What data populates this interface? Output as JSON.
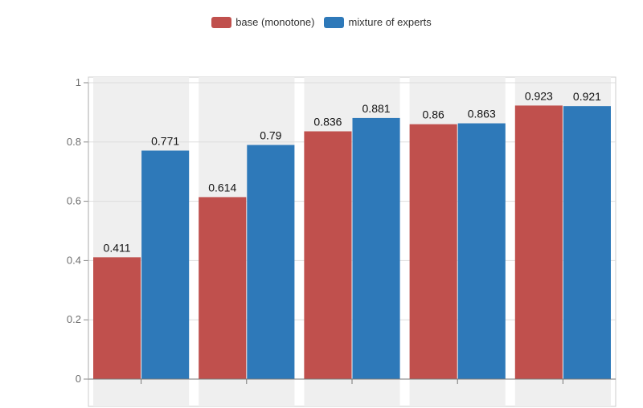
{
  "legend": [
    {
      "name": "base (monotone)",
      "color": "#c0504d"
    },
    {
      "name": "mixture of experts",
      "color": "#2e79b9"
    }
  ],
  "chart_data": {
    "type": "bar",
    "categories": [
      "",
      "",
      "",
      "",
      ""
    ],
    "series": [
      {
        "name": "base (monotone)",
        "color": "#c0504d",
        "values": [
          0.411,
          0.614,
          0.836,
          0.86,
          0.923
        ]
      },
      {
        "name": "mixture of experts",
        "color": "#2e79b9",
        "values": [
          0.771,
          0.79,
          0.881,
          0.863,
          0.921
        ]
      }
    ],
    "value_labels": [
      [
        "0.411",
        "0.614",
        "0.836",
        "0.86",
        "0.923"
      ],
      [
        "0.771",
        "0.79",
        "0.881",
        "0.863",
        "0.921"
      ]
    ],
    "yticks": [
      "0",
      "0.2",
      "0.4",
      "0.6",
      "0.8",
      "1"
    ],
    "ylim": [
      0,
      1
    ],
    "title": "",
    "xlabel": "",
    "ylabel": "",
    "legend_position": "top-center",
    "grid": true
  }
}
